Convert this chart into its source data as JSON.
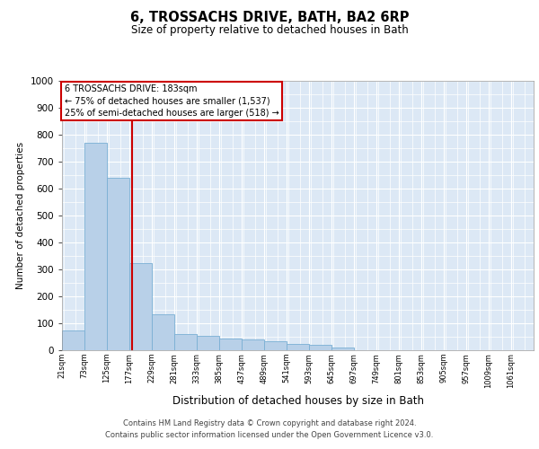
{
  "title": "6, TROSSACHS DRIVE, BATH, BA2 6RP",
  "subtitle": "Size of property relative to detached houses in Bath",
  "xlabel": "Distribution of detached houses by size in Bath",
  "ylabel": "Number of detached properties",
  "bar_color": "#b8d0e8",
  "bar_edge_color": "#7aafd4",
  "bg_color": "#dce8f5",
  "grid_color": "#ffffff",
  "vline_color": "#cc0000",
  "vline_x": 183,
  "annotation_box_color": "#cc0000",
  "annotation_text": "6 TROSSACHS DRIVE: 183sqm\n← 75% of detached houses are smaller (1,537)\n25% of semi-detached houses are larger (518) →",
  "categories": [
    "21sqm",
    "73sqm",
    "125sqm",
    "177sqm",
    "229sqm",
    "281sqm",
    "333sqm",
    "385sqm",
    "437sqm",
    "489sqm",
    "541sqm",
    "593sqm",
    "645sqm",
    "697sqm",
    "749sqm",
    "801sqm",
    "853sqm",
    "905sqm",
    "957sqm",
    "1009sqm",
    "1061sqm"
  ],
  "bin_starts": [
    21,
    73,
    125,
    177,
    229,
    281,
    333,
    385,
    437,
    489,
    541,
    593,
    645,
    697,
    749,
    801,
    853,
    905,
    957,
    1009,
    1061
  ],
  "bin_width": 52,
  "values": [
    75,
    770,
    640,
    325,
    135,
    60,
    55,
    45,
    40,
    35,
    25,
    20,
    10,
    0,
    0,
    0,
    0,
    0,
    0,
    0,
    0
  ],
  "ylim": [
    0,
    1000
  ],
  "yticks": [
    0,
    100,
    200,
    300,
    400,
    500,
    600,
    700,
    800,
    900,
    1000
  ],
  "footer1": "Contains HM Land Registry data © Crown copyright and database right 2024.",
  "footer2": "Contains public sector information licensed under the Open Government Licence v3.0."
}
